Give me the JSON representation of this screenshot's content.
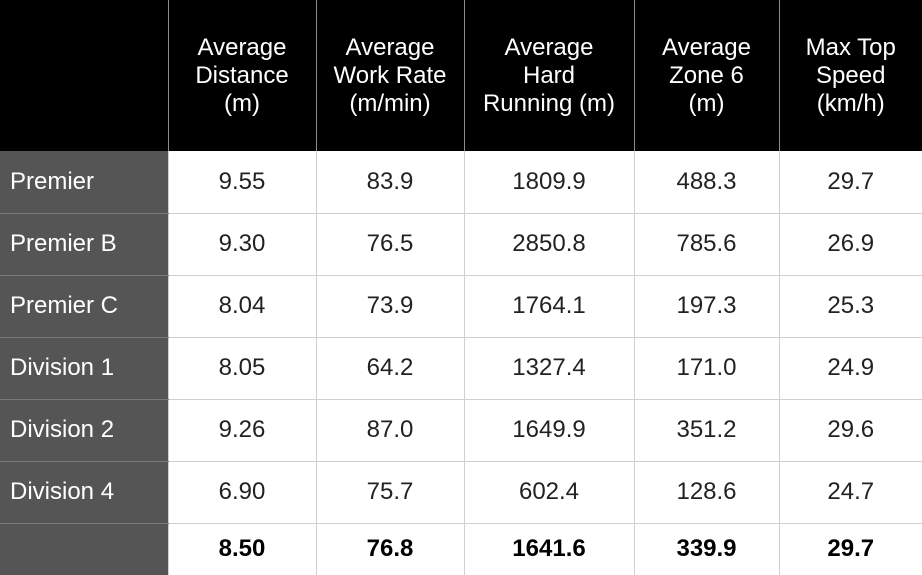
{
  "chart_data": {
    "type": "table",
    "columns": [
      "Average\nDistance\n(m)",
      "Average\nWork Rate\n(m/min)",
      "Average\nHard\nRunning (m)",
      "Average\nZone 6\n(m)",
      "Max Top\nSpeed\n(km/h)"
    ],
    "rows": [
      {
        "label": "Premier",
        "values": [
          "9.55",
          "83.9",
          "1809.9",
          "488.3",
          "29.7"
        ]
      },
      {
        "label": "Premier B",
        "values": [
          "9.30",
          "76.5",
          "2850.8",
          "785.6",
          "26.9"
        ]
      },
      {
        "label": "Premier C",
        "values": [
          "8.04",
          "73.9",
          "1764.1",
          "197.3",
          "25.3"
        ]
      },
      {
        "label": "Division 1",
        "values": [
          "8.05",
          "64.2",
          "1327.4",
          "171.0",
          "24.9"
        ]
      },
      {
        "label": "Division 2",
        "values": [
          "9.26",
          "87.0",
          "1649.9",
          "351.2",
          "29.6"
        ]
      },
      {
        "label": "Division 4",
        "values": [
          "6.90",
          "75.7",
          "602.4",
          "128.6",
          "24.7"
        ]
      }
    ],
    "summary": {
      "label": "",
      "values": [
        "8.50",
        "76.8",
        "1641.6",
        "339.9",
        "29.7"
      ]
    }
  },
  "colors": {
    "header_bg": "#000000",
    "row_label_bg": "#555555",
    "cell_bg": "#ffffff"
  }
}
